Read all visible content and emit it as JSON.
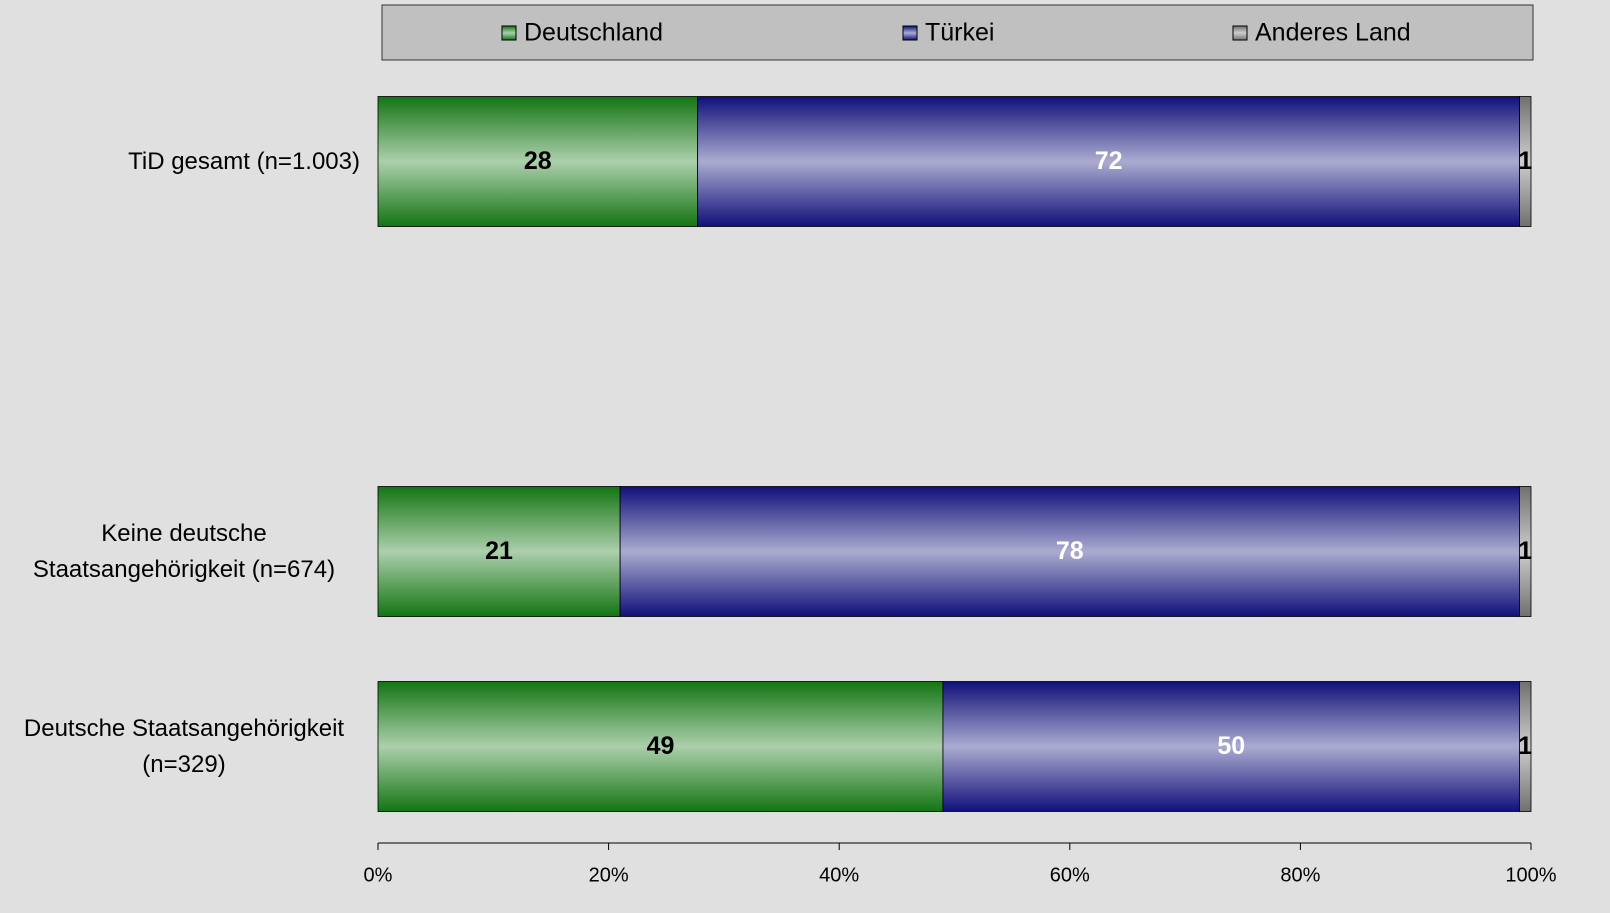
{
  "chart_data": {
    "type": "bar",
    "orientation": "horizontal",
    "stacking": "percent",
    "categories": [
      "TiD gesamt (n=1.003)",
      null,
      "Keine deutsche Staatsangehörigkeit (n=674)",
      "Deutsche Staatsangehörigkeit (n=329)"
    ],
    "series": [
      {
        "name": "Deutschland",
        "color": "#137513",
        "label_color": "#000000",
        "values": [
          28,
          null,
          21,
          49
        ]
      },
      {
        "name": "Türkei",
        "color": "#10107a",
        "label_color": "#ffffff",
        "values": [
          72,
          null,
          78,
          50
        ]
      },
      {
        "name": "Anderes Land",
        "color": "#707070",
        "label_color": "#000000",
        "values": [
          1,
          null,
          1,
          1
        ]
      }
    ],
    "xlim": [
      0,
      100
    ],
    "xticks": [
      {
        "value": 0,
        "label": "0%"
      },
      {
        "value": 20,
        "label": "20%"
      },
      {
        "value": 40,
        "label": "40%"
      },
      {
        "value": 60,
        "label": "60%"
      },
      {
        "value": 80,
        "label": "80%"
      },
      {
        "value": 100,
        "label": "100%"
      }
    ],
    "legend": "top"
  }
}
